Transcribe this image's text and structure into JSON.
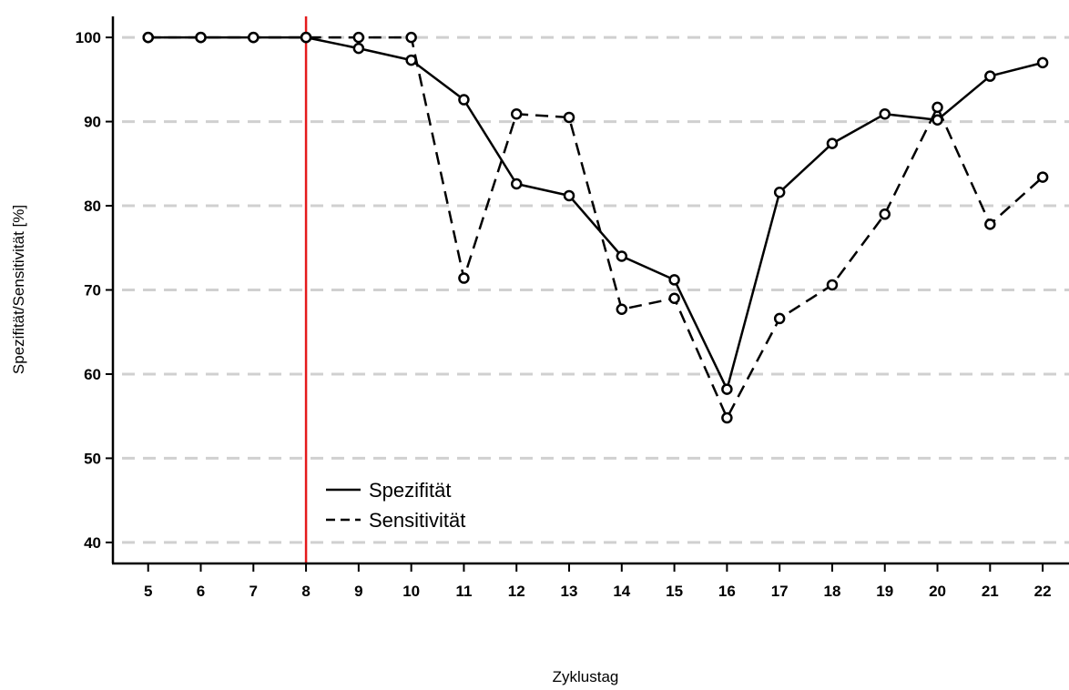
{
  "chart_data": {
    "type": "line",
    "xlabel": "Zyklustag",
    "ylabel": "Spezifität/Sensitivität [%]",
    "x": [
      5,
      6,
      7,
      8,
      9,
      10,
      11,
      12,
      13,
      14,
      15,
      16,
      17,
      18,
      19,
      20,
      21,
      22
    ],
    "xlim": [
      4.33,
      22.5
    ],
    "ylim": [
      37.5,
      102.5
    ],
    "yticks": [
      40,
      50,
      60,
      70,
      80,
      90,
      100
    ],
    "grid": true,
    "grid_style": "horizontal dashed",
    "reference_line": {
      "x": 8,
      "color": "#e41a1c"
    },
    "legend_position": "bottom-left",
    "series": [
      {
        "name": "Spezifität",
        "line_style": "solid",
        "color": "#000000",
        "values": [
          100,
          100,
          100,
          100,
          98.7,
          97.3,
          92.6,
          82.6,
          81.2,
          74.0,
          71.2,
          58.2,
          81.6,
          87.4,
          90.9,
          90.2,
          95.4,
          97.0
        ]
      },
      {
        "name": "Sensitivität",
        "line_style": "dashed",
        "color": "#000000",
        "values": [
          100,
          100,
          100,
          100,
          100,
          100,
          71.4,
          90.9,
          90.5,
          67.7,
          69.0,
          54.8,
          66.6,
          70.6,
          79.0,
          91.7,
          77.8,
          83.4
        ]
      }
    ]
  }
}
